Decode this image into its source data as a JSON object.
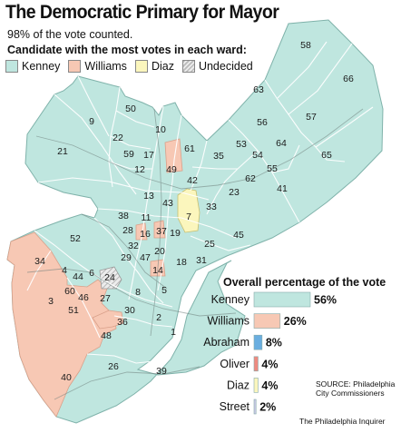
{
  "header": {
    "title": "The Democratic Primary for Mayor",
    "subtitle": "98% of the vote counted.",
    "legend_heading": "Candidate with the most votes in each ward:"
  },
  "legend": [
    {
      "label": "Kenney",
      "color": "#bfe6df"
    },
    {
      "label": "Williams",
      "color": "#f7c8b4"
    },
    {
      "label": "Diaz",
      "color": "#fbf6bd"
    },
    {
      "label": "Undecided",
      "color": "#d6d6d6",
      "pattern": "hatch"
    }
  ],
  "map": {
    "ward_labels": [
      "58",
      "66",
      "63",
      "56",
      "57",
      "64",
      "53",
      "54",
      "55",
      "65",
      "62",
      "41",
      "23",
      "33",
      "7",
      "45",
      "25",
      "31",
      "18",
      "19",
      "42",
      "35",
      "61",
      "49",
      "50",
      "10",
      "9",
      "22",
      "59",
      "12",
      "17",
      "21",
      "13",
      "43",
      "38",
      "11",
      "28",
      "16",
      "37",
      "32",
      "20",
      "29",
      "47",
      "14",
      "52",
      "34",
      "4",
      "44",
      "6",
      "24",
      "60",
      "46",
      "27",
      "8",
      "5",
      "3",
      "51",
      "30",
      "36",
      "2",
      "1",
      "48",
      "26",
      "39",
      "40"
    ],
    "winners": {
      "Kenney": "#bfe6df",
      "Williams": "#f7c8b4",
      "Diaz": "#fbf6bd"
    }
  },
  "chart_data": {
    "type": "bar",
    "title": "Overall percentage of the vote",
    "categories": [
      "Kenney",
      "Williams",
      "Abraham",
      "Oliver",
      "Diaz",
      "Street"
    ],
    "values": [
      56,
      26,
      8,
      4,
      4,
      2
    ],
    "value_labels": [
      "56%",
      "26%",
      "8%",
      "4%",
      "4%",
      "2%"
    ],
    "colors": [
      "#bfe6df",
      "#f7c8b4",
      "#6aaee0",
      "#ee8a80",
      "#fbf6bd",
      "#c9c9e6"
    ],
    "xlim": [
      0,
      56
    ]
  },
  "footer": {
    "source_line1": "SOURCE: Philadelphia",
    "source_line2": "City Commissioners",
    "credit": "The Philadelphia Inquirer"
  }
}
